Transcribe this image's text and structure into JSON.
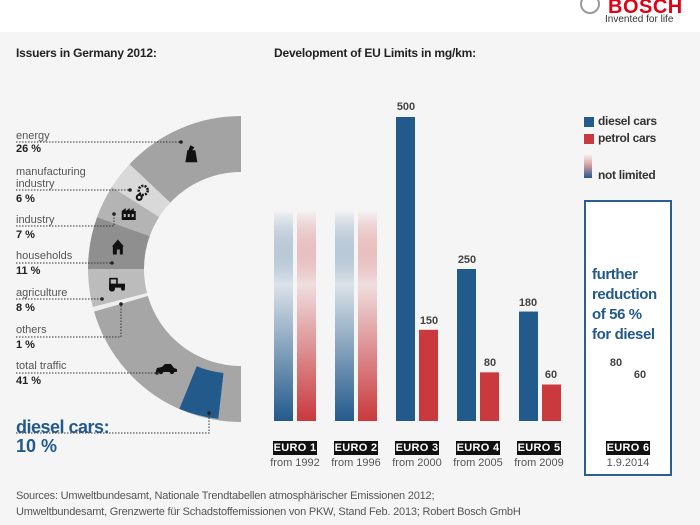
{
  "header": {
    "brand": "BOSCH",
    "tagline": "Invented for life",
    "logo_icon": "bosch-armature-icon"
  },
  "left": {
    "title": "Issuers in Germany 2012:",
    "segments": [
      {
        "label": "energy",
        "value": "26 %",
        "share": 26,
        "icon": "power-plant-icon",
        "color": "#a3a3a3"
      },
      {
        "label": "manufacturing industry",
        "value": "6 %",
        "share": 6,
        "icon": "gears-icon",
        "color": "#d9d9d9"
      },
      {
        "label": "industry",
        "value": "7 %",
        "share": 7,
        "icon": "factory-icon",
        "color": "#b4b4b4"
      },
      {
        "label": "households",
        "value": "11 %",
        "share": 11,
        "icon": "house-icon",
        "color": "#8f8f8f"
      },
      {
        "label": "agriculture",
        "value": "8 %",
        "share": 8,
        "icon": "tractor-icon",
        "color": "#bcbcbc"
      },
      {
        "label": "others",
        "value": "1 %",
        "share": 1,
        "icon": "",
        "color": "#eeeeee"
      },
      {
        "label": "total traffic",
        "value": "41 %",
        "share": 41,
        "icon": "car-icon",
        "color": "#a6a6a6"
      }
    ],
    "diesel": {
      "label": "diesel cars:",
      "value": "10 %",
      "share": 10,
      "color": "#235a8c"
    }
  },
  "chart_data": {
    "type": "bar",
    "title": "Development of EU Limits in mg/km:",
    "xlabel": "",
    "ylabel": "mg/km",
    "ylim": [
      0,
      500
    ],
    "grid": false,
    "legend_position": "right",
    "categories": [
      "EURO 1",
      "EURO 2",
      "EURO 3",
      "EURO 4",
      "EURO 5",
      "EURO 6"
    ],
    "dates": [
      "from 1992",
      "from 1996",
      "from 2000",
      "from 2005",
      "from 2009",
      "1.9.2014"
    ],
    "series": [
      {
        "name": "diesel cars",
        "color": "#235a8c",
        "values": [
          null,
          null,
          500,
          250,
          180,
          80
        ],
        "labels": [
          "",
          "",
          "500",
          "250",
          "180",
          "80"
        ]
      },
      {
        "name": "petrol cars",
        "color": "#c9393d",
        "values": [
          null,
          null,
          150,
          80,
          60,
          60
        ],
        "labels": [
          "",
          "",
          "150",
          "80",
          "60",
          "60"
        ]
      }
    ],
    "not_limited": [
      "EURO 1",
      "EURO 2"
    ],
    "legend": [
      "diesel cars",
      "petrol cars",
      "not limited"
    ],
    "annotation": "further reduction of 56 % for diesel"
  },
  "legend": {
    "diesel": "diesel cars",
    "petrol": "petrol cars",
    "not_limited": "not limited"
  },
  "box": {
    "lines": [
      "further",
      "reduction",
      "of 56 %",
      "for diesel"
    ],
    "icon": "down-triangle-icon"
  },
  "sources": {
    "line1": "Sources: Umweltbundesamt, Nationale Trendtabellen atmosphärischer Emissionen 2012;",
    "line2": "Umweltbundesamt, Grenzwerte für Schadstoffemissionen von PKW, Stand Feb. 2013; Robert Bosch GmbH"
  }
}
